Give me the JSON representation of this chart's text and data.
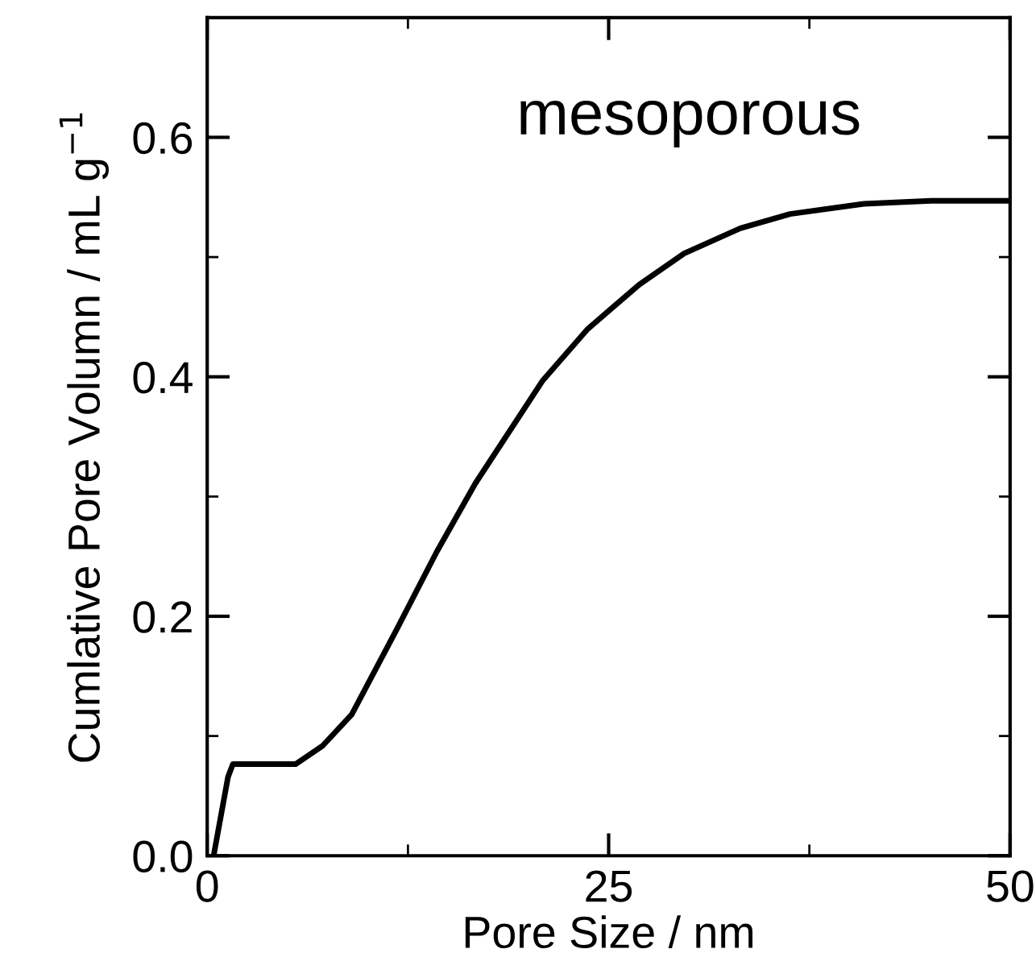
{
  "chart_data": {
    "type": "line",
    "xlabel": "Pore Size / nm",
    "ylabel": "Cumlative Pore Volumn / mL g$^{−1}$",
    "annotations": [
      "mesoporous"
    ],
    "x": [
      0.4,
      1.3,
      1.6,
      3.0,
      5.5,
      7.2,
      9.0,
      11.8,
      14.3,
      16.7,
      20.9,
      23.7,
      26.9,
      29.7,
      33.2,
      36.3,
      40.9,
      45.1,
      50
    ],
    "series": [
      {
        "color": "#000000",
        "values": [
          0.0,
          0.066,
          0.0765,
          0.0765,
          0.0765,
          0.092,
          0.118,
          0.189,
          0.254,
          0.311,
          0.397,
          0.44,
          0.477,
          0.503,
          0.524,
          0.536,
          0.5445,
          0.547,
          0.547
        ]
      }
    ],
    "xlim": [
      0,
      50
    ],
    "xticks": [
      0,
      25,
      50
    ],
    "ylim": [
      0,
      0.7
    ],
    "yticks": [
      {
        "value": 0,
        "label": "0.0"
      },
      {
        "value": 0.2,
        "label": "0.2"
      },
      {
        "value": 0.4,
        "label": "0.4"
      },
      {
        "value": 0.6,
        "label": "0.6"
      }
    ],
    "grid": false,
    "legend": false,
    "marker": "none",
    "line_style": "solid"
  }
}
